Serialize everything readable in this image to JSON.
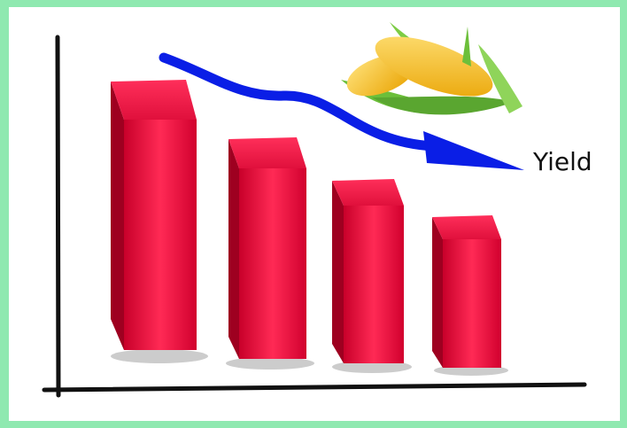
{
  "label": "Yield"
}
